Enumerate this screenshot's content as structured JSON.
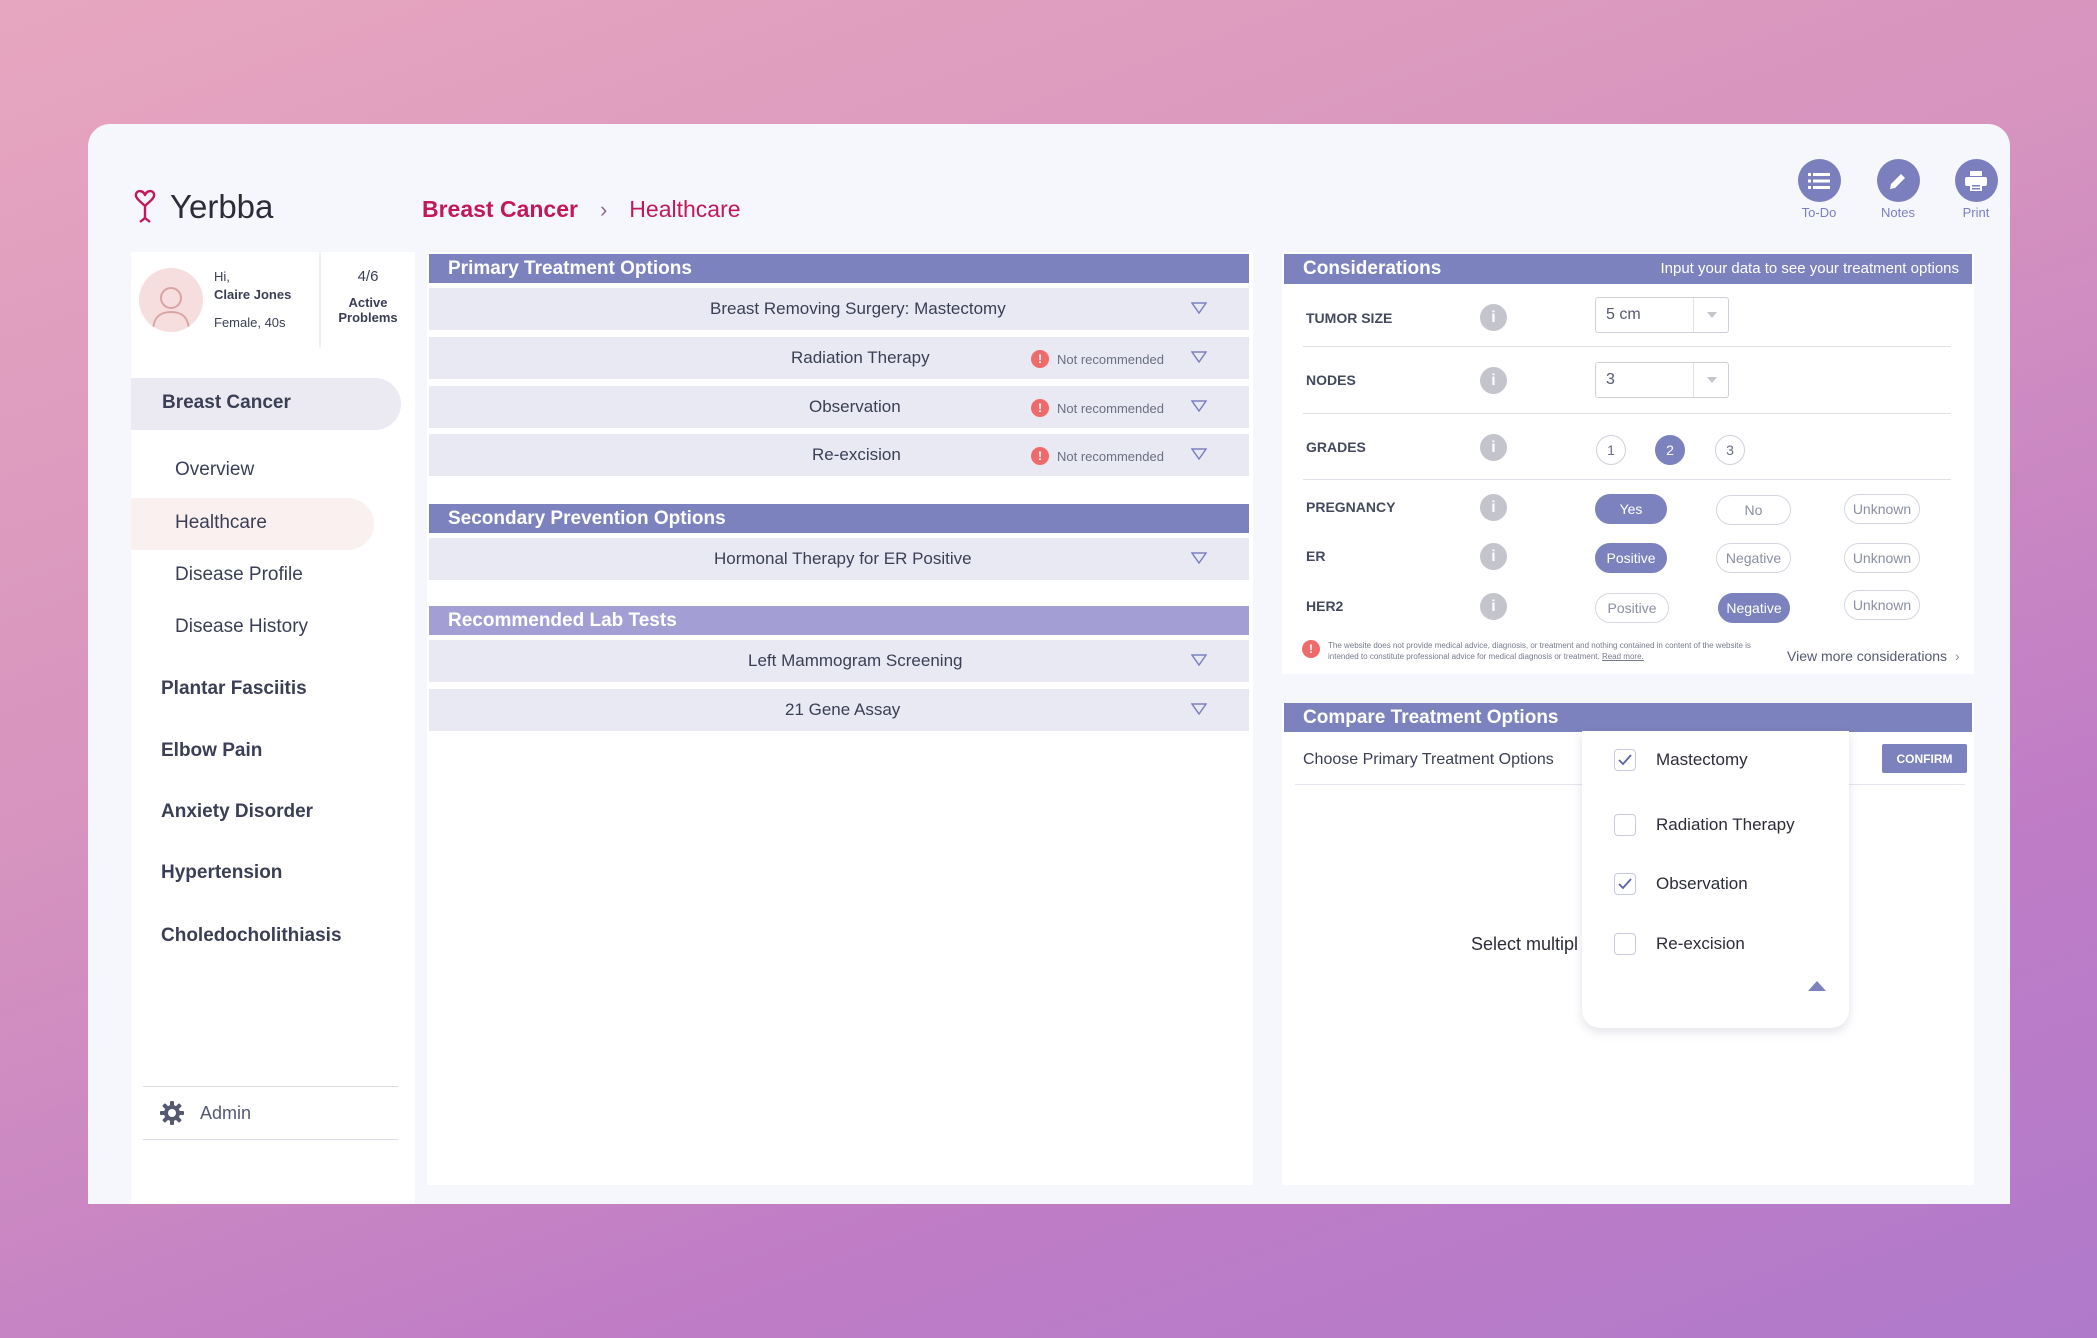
{
  "app": {
    "name": "Yerbba"
  },
  "breadcrumb": {
    "section": "Breast Cancer",
    "page": "Healthcare"
  },
  "toolbar": {
    "todo": "To-Do",
    "notes": "Notes",
    "print": "Print"
  },
  "profile": {
    "greeting": "Hi,",
    "name": "Claire Jones",
    "details": "Female, 40s",
    "problems_count": "4/6",
    "problems_line1": "Active",
    "problems_line2": "Problems"
  },
  "sidebar": {
    "active_problem": "Breast Cancer",
    "sub_items": [
      "Overview",
      "Healthcare",
      "Disease Profile",
      "Disease History"
    ],
    "problems": [
      "Plantar Fasciitis",
      "Elbow Pain",
      "Anxiety Disorder",
      "Hypertension",
      "Choledocholithiasis"
    ],
    "admin": "Admin"
  },
  "primary": {
    "title": "Primary Treatment Options",
    "items": [
      {
        "label": "Breast Removing Surgery: Mastectomy",
        "status": ""
      },
      {
        "label": "Radiation Therapy",
        "status": "Not recommended"
      },
      {
        "label": "Observation",
        "status": "Not recommended"
      },
      {
        "label": "Re-excision",
        "status": "Not recommended"
      }
    ]
  },
  "secondary": {
    "title": "Secondary Prevention Options",
    "items": [
      {
        "label": "Hormonal Therapy for ER Positive"
      }
    ]
  },
  "lab": {
    "title": "Recommended Lab Tests",
    "items": [
      {
        "label": "Left Mammogram Screening"
      },
      {
        "label": "21 Gene Assay"
      }
    ]
  },
  "considerations": {
    "title": "Considerations",
    "subtitle": "Input your data to see your treatment options",
    "tumor_size": {
      "label": "TUMOR SIZE",
      "value": "5 cm"
    },
    "nodes": {
      "label": "NODES",
      "value": "3"
    },
    "grades": {
      "label": "GRADES",
      "options": [
        "1",
        "2",
        "3"
      ],
      "selected": "2"
    },
    "pregnancy": {
      "label": "PREGNANCY",
      "options": [
        "Yes",
        "No",
        "Unknown"
      ],
      "selected": "Yes"
    },
    "er": {
      "label": "ER",
      "options": [
        "Positive",
        "Negative",
        "Unknown"
      ],
      "selected": "Positive"
    },
    "her2": {
      "label": "HER2",
      "options": [
        "Positive",
        "Negative",
        "Unknown"
      ],
      "selected": "Negative"
    },
    "disclaimer": "The website does not provide medical advice, diagnosis, or treatment and nothing contained in content of the website is intended to constitute professional advice for medical diagnosis or treatment.",
    "read_more": "Read more.",
    "view_more": "View more considerations"
  },
  "compare": {
    "title": "Compare Treatment Options",
    "choose_label": "Choose Primary Treatment Options",
    "confirm": "CONFIRM",
    "placeholder": "Select multipl",
    "options": [
      {
        "label": "Mastectomy",
        "checked": true
      },
      {
        "label": "Radiation Therapy",
        "checked": false
      },
      {
        "label": "Observation",
        "checked": true
      },
      {
        "label": "Re-excision",
        "checked": false
      }
    ]
  },
  "colors": {
    "accent": "#7c82be",
    "brand": "#c2185b",
    "warning": "#ef6b6b"
  }
}
